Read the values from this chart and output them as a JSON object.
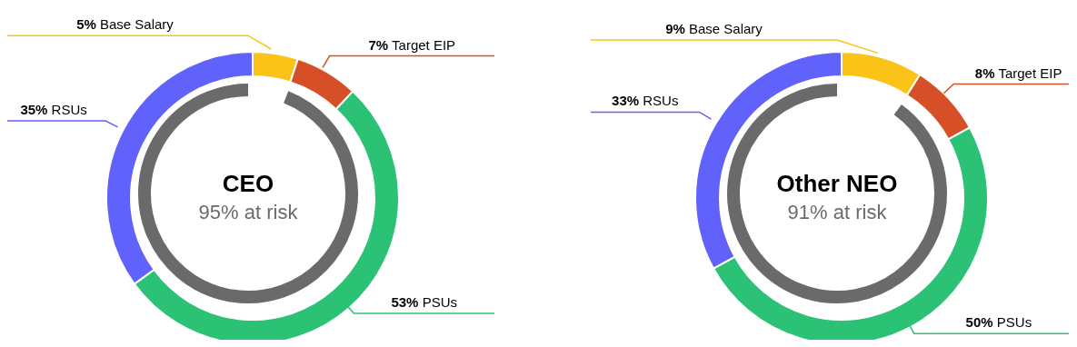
{
  "chart_data": [
    {
      "type": "donut",
      "title": "CEO",
      "subtitle": "95% at risk",
      "categories": [
        "Base Salary",
        "Target EIP",
        "PSUs",
        "RSUs"
      ],
      "series": [
        {
          "values": [
            5,
            7,
            53,
            35
          ],
          "colors": [
            "#fbc318",
            "#d64f27",
            "#2cc275",
            "#6161fb"
          ],
          "value_labels": [
            "5%",
            "7%",
            "53%",
            "35%"
          ]
        }
      ]
    },
    {
      "type": "donut",
      "title": "Other NEO",
      "subtitle": "91% at risk",
      "categories": [
        "Base Salary",
        "Target EIP",
        "PSUs",
        "RSUs"
      ],
      "series": [
        {
          "values": [
            9,
            8,
            50,
            33
          ],
          "colors": [
            "#fbc318",
            "#d64f27",
            "#2cc275",
            "#6161fb"
          ],
          "value_labels": [
            "9%",
            "8%",
            "50%",
            "33%"
          ]
        }
      ]
    }
  ]
}
